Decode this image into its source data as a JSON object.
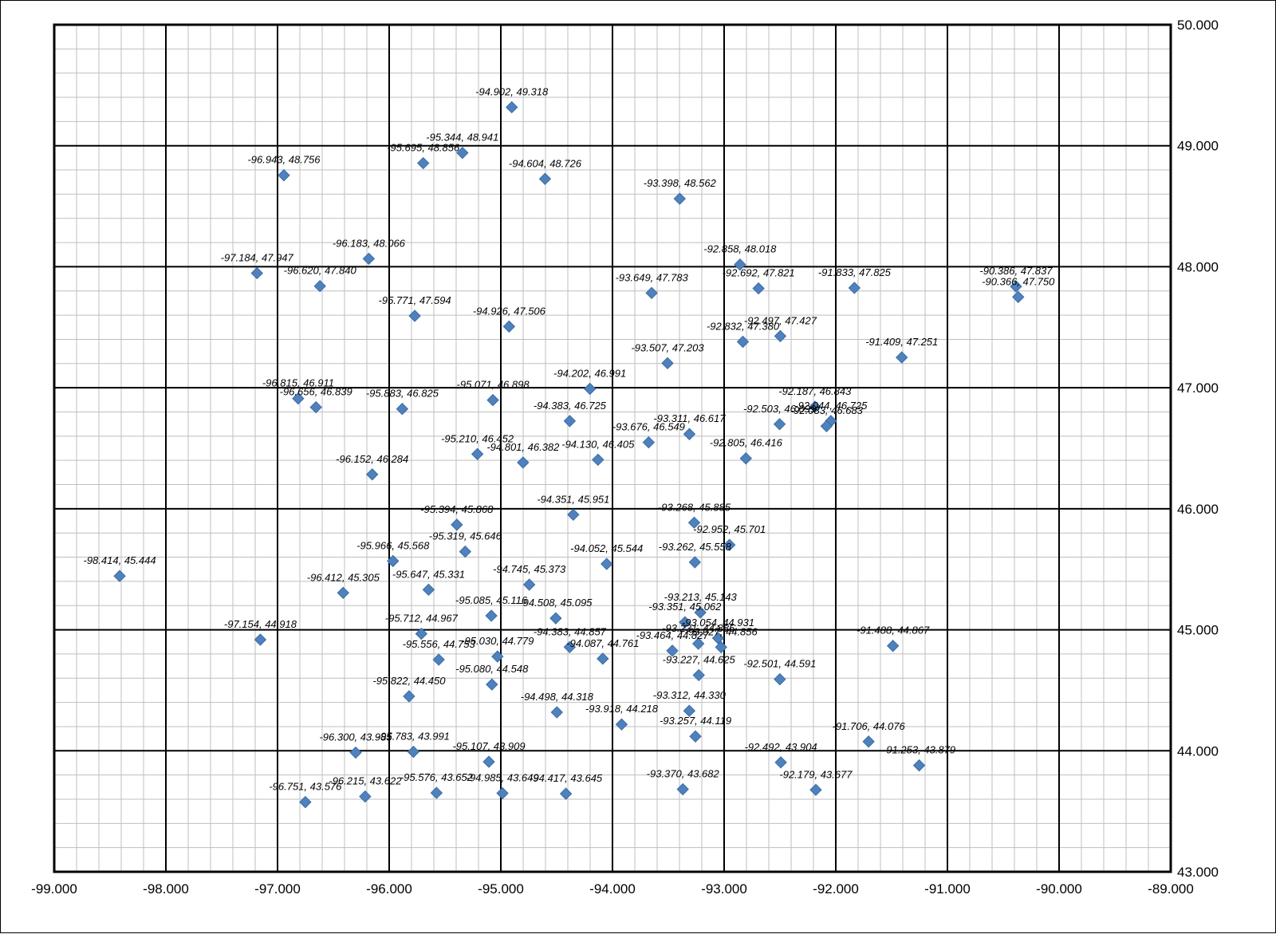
{
  "chart_data": {
    "type": "scatter",
    "title": "",
    "xlabel": "",
    "ylabel": "",
    "xlim": [
      -99,
      -89
    ],
    "ylim": [
      43,
      50
    ],
    "x_ticks": [
      "-99.000",
      "-98.000",
      "-97.000",
      "-96.000",
      "-95.000",
      "-94.000",
      "-93.000",
      "-92.000",
      "-91.000",
      "-90.000",
      "-89.000"
    ],
    "y_ticks": [
      "50.000",
      "49.000",
      "48.000",
      "47.000",
      "46.000",
      "45.000",
      "44.000",
      "43.000"
    ],
    "major_grid": true,
    "minor_grid": true,
    "minor_divisions": 5,
    "marker": "diamond",
    "marker_color": "#4F81BD",
    "grid_major_color": "#000000",
    "grid_minor_color": "#BFBFBF",
    "points": [
      {
        "x": -94.902,
        "y": 49.318,
        "label": "-94.902, 49.318"
      },
      {
        "x": -95.344,
        "y": 48.941,
        "label": "-95.344, 48.941"
      },
      {
        "x": -95.695,
        "y": 48.856,
        "label": "-95.695, 48.856"
      },
      {
        "x": -96.943,
        "y": 48.756,
        "label": "-96.943, 48.756"
      },
      {
        "x": -94.604,
        "y": 48.726,
        "label": "-94.604, 48.726"
      },
      {
        "x": -93.398,
        "y": 48.562,
        "label": "-93.398, 48.562"
      },
      {
        "x": -96.183,
        "y": 48.066,
        "label": "-96.183, 48.066"
      },
      {
        "x": -92.858,
        "y": 48.018,
        "label": "-92.858, 48.018"
      },
      {
        "x": -97.184,
        "y": 47.947,
        "label": "-97.184, 47.947"
      },
      {
        "x": -96.62,
        "y": 47.84,
        "label": "-96.620, 47.840"
      },
      {
        "x": -92.692,
        "y": 47.821,
        "label": "-92.692, 47.821"
      },
      {
        "x": -91.833,
        "y": 47.825,
        "label": "-91.833, 47.825"
      },
      {
        "x": -90.386,
        "y": 47.837,
        "label": "-90.386, 47.837"
      },
      {
        "x": -90.366,
        "y": 47.75,
        "label": "-90.366, 47.750"
      },
      {
        "x": -93.649,
        "y": 47.783,
        "label": "-93.649, 47.783"
      },
      {
        "x": -95.771,
        "y": 47.594,
        "label": "-95.771, 47.594"
      },
      {
        "x": -94.926,
        "y": 47.506,
        "label": "-94.926, 47.506"
      },
      {
        "x": -92.497,
        "y": 47.427,
        "label": "-92.497, 47.427"
      },
      {
        "x": -92.832,
        "y": 47.38,
        "label": "-92.832, 47.380"
      },
      {
        "x": -91.409,
        "y": 47.251,
        "label": "-91.409, 47.251"
      },
      {
        "x": -93.507,
        "y": 47.203,
        "label": "-93.507, 47.203"
      },
      {
        "x": -94.202,
        "y": 46.991,
        "label": "-94.202, 46.991"
      },
      {
        "x": -96.815,
        "y": 46.911,
        "label": "-96.815, 46.911"
      },
      {
        "x": -95.071,
        "y": 46.898,
        "label": "-95.071, 46.898"
      },
      {
        "x": -96.656,
        "y": 46.839,
        "label": "-96.656, 46.839"
      },
      {
        "x": -95.883,
        "y": 46.825,
        "label": "-95.883, 46.825"
      },
      {
        "x": -92.187,
        "y": 46.843,
        "label": "-92.187, 46.843"
      },
      {
        "x": -94.383,
        "y": 46.725,
        "label": "-94.383, 46.725"
      },
      {
        "x": -92.044,
        "y": 46.725,
        "label": "-92.044, 46.725"
      },
      {
        "x": -92.503,
        "y": 46.699,
        "label": "-92.503, 46.699"
      },
      {
        "x": -92.083,
        "y": 46.683,
        "label": "-92.083, 46.683"
      },
      {
        "x": -93.311,
        "y": 46.617,
        "label": "-93.311, 46.617"
      },
      {
        "x": -93.676,
        "y": 46.549,
        "label": "-93.676, 46.549"
      },
      {
        "x": -95.21,
        "y": 46.452,
        "label": "-95.210, 46.452"
      },
      {
        "x": -92.805,
        "y": 46.416,
        "label": "-92.805, 46.416"
      },
      {
        "x": -94.13,
        "y": 46.405,
        "label": "-94.130, 46.405"
      },
      {
        "x": -94.801,
        "y": 46.382,
        "label": "-94.801, 46.382"
      },
      {
        "x": -96.152,
        "y": 46.284,
        "label": "-96.152, 46.284"
      },
      {
        "x": -94.351,
        "y": 45.951,
        "label": "-94.351, 45.951"
      },
      {
        "x": -93.268,
        "y": 45.885,
        "label": "-93.268, 45.885"
      },
      {
        "x": -95.394,
        "y": 45.868,
        "label": "-95.394, 45.868"
      },
      {
        "x": -92.952,
        "y": 45.701,
        "label": "-92.952, 45.701"
      },
      {
        "x": -95.319,
        "y": 45.646,
        "label": "-95.319, 45.646"
      },
      {
        "x": -95.966,
        "y": 45.568,
        "label": "-95.966, 45.568"
      },
      {
        "x": -93.262,
        "y": 45.558,
        "label": "-93.262, 45.558"
      },
      {
        "x": -94.052,
        "y": 45.544,
        "label": "-94.052, 45.544"
      },
      {
        "x": -98.414,
        "y": 45.444,
        "label": "-98.414, 45.444"
      },
      {
        "x": -94.745,
        "y": 45.373,
        "label": "-94.745, 45.373"
      },
      {
        "x": -95.647,
        "y": 45.331,
        "label": "-95.647, 45.331"
      },
      {
        "x": -96.412,
        "y": 45.305,
        "label": "-96.412, 45.305"
      },
      {
        "x": -93.213,
        "y": 45.143,
        "label": "-93.213, 45.143"
      },
      {
        "x": -95.085,
        "y": 45.116,
        "label": "-95.085, 45.116"
      },
      {
        "x": -94.508,
        "y": 45.095,
        "label": "-94.508, 45.095"
      },
      {
        "x": -93.351,
        "y": 45.062,
        "label": "-93.351, 45.062"
      },
      {
        "x": -95.712,
        "y": 44.967,
        "label": "-95.712, 44.967"
      },
      {
        "x": -93.054,
        "y": 44.931,
        "label": "-93.054, 44.931"
      },
      {
        "x": -97.154,
        "y": 44.918,
        "label": "-97.154, 44.918"
      },
      {
        "x": -93.231,
        "y": 44.885,
        "label": "-93.231, 44.885"
      },
      {
        "x": -91.488,
        "y": 44.867,
        "label": "-91.488, 44.867"
      },
      {
        "x": -94.383,
        "y": 44.857,
        "label": "-94.383, 44.857"
      },
      {
        "x": -93.027,
        "y": 44.856,
        "label": "-93.027, 44.856"
      },
      {
        "x": -93.464,
        "y": 44.827,
        "label": "-93.464, 44.827"
      },
      {
        "x": -93.227,
        "y": 44.625,
        "label": "-93.227, 44.625"
      },
      {
        "x": -95.03,
        "y": 44.779,
        "label": "-95.030, 44.779"
      },
      {
        "x": -94.087,
        "y": 44.761,
        "label": "-94.087, 44.761"
      },
      {
        "x": -95.556,
        "y": 44.753,
        "label": "-95.556, 44.753"
      },
      {
        "x": -92.501,
        "y": 44.591,
        "label": "-92.501, 44.591"
      },
      {
        "x": -95.08,
        "y": 44.548,
        "label": "-95.080, 44.548"
      },
      {
        "x": -95.822,
        "y": 44.45,
        "label": "-95.822, 44.450"
      },
      {
        "x": -93.312,
        "y": 44.33,
        "label": "-93.312, 44.330"
      },
      {
        "x": -94.498,
        "y": 44.318,
        "label": "-94.498, 44.318"
      },
      {
        "x": -93.918,
        "y": 44.218,
        "label": "-93.918, 44.218"
      },
      {
        "x": -93.257,
        "y": 44.119,
        "label": "-93.257, 44.119"
      },
      {
        "x": -91.706,
        "y": 44.076,
        "label": "-91.706, 44.076"
      },
      {
        "x": -96.3,
        "y": 43.985,
        "label": "-96.300, 43.985"
      },
      {
        "x": -95.783,
        "y": 43.991,
        "label": "-95.783, 43.991"
      },
      {
        "x": -95.107,
        "y": 43.909,
        "label": "-95.107, 43.909"
      },
      {
        "x": -92.492,
        "y": 43.904,
        "label": "-92.492, 43.904"
      },
      {
        "x": -91.253,
        "y": 43.879,
        "label": "-91.253, 43.879"
      },
      {
        "x": -93.37,
        "y": 43.682,
        "label": "-93.370, 43.682"
      },
      {
        "x": -92.179,
        "y": 43.677,
        "label": "-92.179, 43.677"
      },
      {
        "x": -95.576,
        "y": 43.652,
        "label": "-95.576, 43.652"
      },
      {
        "x": -94.985,
        "y": 43.649,
        "label": "-94.985, 43.649"
      },
      {
        "x": -94.417,
        "y": 43.645,
        "label": "-94.417, 43.645"
      },
      {
        "x": -96.215,
        "y": 43.622,
        "label": "-96.215, 43.622"
      },
      {
        "x": -96.751,
        "y": 43.576,
        "label": "-96.751, 43.576"
      }
    ]
  }
}
